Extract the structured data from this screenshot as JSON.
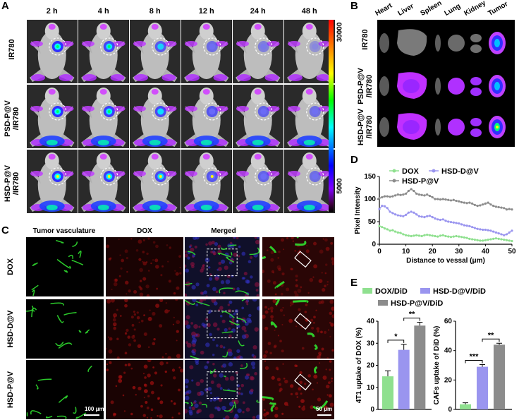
{
  "panels": {
    "A": "A",
    "B": "B",
    "C": "C",
    "D": "D",
    "E": "E"
  },
  "panel_a": {
    "timepoints": [
      "2 h",
      "4 h",
      "8 h",
      "12 h",
      "24 h",
      "48 h"
    ],
    "rows": [
      "IR780",
      "PSD-P@V\n/IR780",
      "HSD-P@V\n/IR780"
    ],
    "colorbar_max": "30000",
    "colorbar_min": "5000"
  },
  "panel_b": {
    "organs": [
      "Heart",
      "Liver",
      "Spleen",
      "Lung",
      "Kidney",
      "Tumor"
    ],
    "rows": [
      "IR780",
      "PSD-P@V\n/IR780",
      "HSD-P@V\n/IR780"
    ]
  },
  "panel_c": {
    "columns": [
      "Tumor vasculature",
      "DOX",
      "Merged"
    ],
    "rows": [
      "DOX",
      "HSD-D@V",
      "HSD-P@V"
    ],
    "scale_left": "100 μm",
    "scale_right": "50 μm"
  },
  "colors": {
    "green": "#8fe08f",
    "blue": "#9a95ef",
    "gray": "#8c8c8c"
  },
  "chart_data": [
    {
      "type": "line",
      "xlabel": "Distance to vessal (μm)",
      "ylabel": "Pixel Intensity",
      "xlim": [
        0,
        50
      ],
      "ylim": [
        0,
        150
      ],
      "xticks": [
        "0",
        "10",
        "20",
        "30",
        "40",
        "50"
      ],
      "yticks": [
        "0",
        "50",
        "100",
        "150"
      ],
      "legend_position": "top-left",
      "series": [
        {
          "name": "DOX",
          "color": "#8fe08f",
          "x": [
            0,
            1,
            2,
            3,
            4,
            5,
            6,
            7,
            8,
            9,
            10,
            11,
            12,
            13,
            14,
            15,
            16,
            17,
            18,
            19,
            20,
            21,
            22,
            23,
            24,
            25,
            26,
            27,
            28,
            29,
            30,
            31,
            32,
            33,
            34,
            35,
            36,
            37,
            38,
            39,
            40,
            41,
            42,
            43,
            44,
            45,
            46,
            47,
            48,
            49,
            50
          ],
          "y": [
            40,
            38,
            35,
            33,
            30,
            31,
            28,
            26,
            25,
            22,
            20,
            19,
            18,
            19,
            20,
            19,
            18,
            20,
            21,
            20,
            19,
            18,
            17,
            19,
            20,
            18,
            17,
            16,
            17,
            18,
            17,
            16,
            15,
            14,
            12,
            11,
            10,
            9,
            8,
            8,
            9,
            10,
            11,
            12,
            13,
            12,
            11,
            10,
            9,
            8,
            7
          ]
        },
        {
          "name": "HSD-D@V",
          "color": "#9a95ef",
          "x": [
            0,
            1,
            2,
            3,
            4,
            5,
            6,
            7,
            8,
            9,
            10,
            11,
            12,
            13,
            14,
            15,
            16,
            17,
            18,
            19,
            20,
            21,
            22,
            23,
            24,
            25,
            26,
            27,
            28,
            29,
            30,
            31,
            32,
            33,
            34,
            35,
            36,
            37,
            38,
            39,
            40,
            41,
            42,
            43,
            44,
            45,
            46,
            47,
            48,
            49,
            50
          ],
          "y": [
            78,
            85,
            84,
            80,
            72,
            69,
            66,
            64,
            63,
            62,
            65,
            70,
            72,
            70,
            66,
            62,
            61,
            60,
            62,
            63,
            60,
            57,
            55,
            54,
            55,
            52,
            50,
            49,
            48,
            47,
            46,
            44,
            42,
            41,
            40,
            38,
            36,
            34,
            33,
            32,
            32,
            31,
            30,
            28,
            26,
            24,
            22,
            20,
            22,
            26,
            30
          ]
        },
        {
          "name": "HSD-P@V",
          "color": "#8c8c8c",
          "x": [
            0,
            1,
            2,
            3,
            4,
            5,
            6,
            7,
            8,
            9,
            10,
            11,
            12,
            13,
            14,
            15,
            16,
            17,
            18,
            19,
            20,
            21,
            22,
            23,
            24,
            25,
            26,
            27,
            28,
            29,
            30,
            31,
            32,
            33,
            34,
            35,
            36,
            37,
            38,
            39,
            40,
            41,
            42,
            43,
            44,
            45,
            46,
            47,
            48,
            49,
            50
          ],
          "y": [
            102,
            104,
            106,
            106,
            105,
            106,
            108,
            110,
            109,
            110,
            112,
            118,
            122,
            118,
            112,
            110,
            109,
            108,
            110,
            107,
            104,
            100,
            100,
            99,
            100,
            99,
            98,
            97,
            98,
            96,
            95,
            93,
            92,
            91,
            92,
            90,
            87,
            85,
            86,
            88,
            90,
            92,
            88,
            85,
            83,
            82,
            81,
            80,
            77,
            78,
            77
          ]
        }
      ]
    },
    {
      "type": "bar",
      "ylabel": "4T1 uptake of DOX (%)",
      "categories": [
        "DOX/DiD",
        "HSD-D@V/DiD",
        "HSD-P@V/DiD"
      ],
      "values": [
        15,
        27,
        38
      ],
      "errors": [
        2.5,
        2.5,
        1.5
      ],
      "ylim": [
        0,
        40
      ],
      "yticks": [
        "0",
        "10",
        "20",
        "30",
        "40"
      ],
      "significance": [
        "*",
        "**"
      ]
    },
    {
      "type": "bar",
      "ylabel": "CAFs uptake of DiD (%)",
      "categories": [
        "DOX/DiD",
        "HSD-D@V/DiD",
        "HSD-P@V/DiD"
      ],
      "values": [
        3.5,
        29,
        44
      ],
      "errors": [
        1,
        1.5,
        1
      ],
      "ylim": [
        0,
        60
      ],
      "yticks": [
        "0",
        "20",
        "40",
        "60"
      ],
      "significance": [
        "***",
        "**"
      ]
    }
  ],
  "legend_e": [
    "DOX/DiD",
    "HSD-D@V/DiD",
    "HSD-P@V/DiD"
  ]
}
